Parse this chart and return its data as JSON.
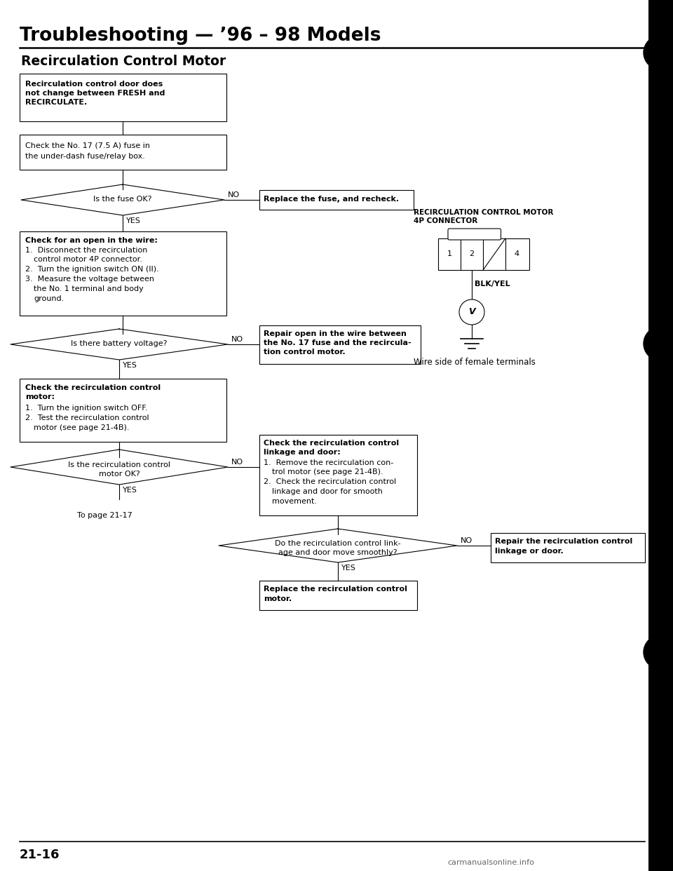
{
  "title": "Troubleshooting — ’96 – 98 Models",
  "subtitle": "Recirculation Control Motor",
  "page_num": "21-16",
  "bg_color": "#ffffff",
  "watermark": "carmanualsonline.info"
}
